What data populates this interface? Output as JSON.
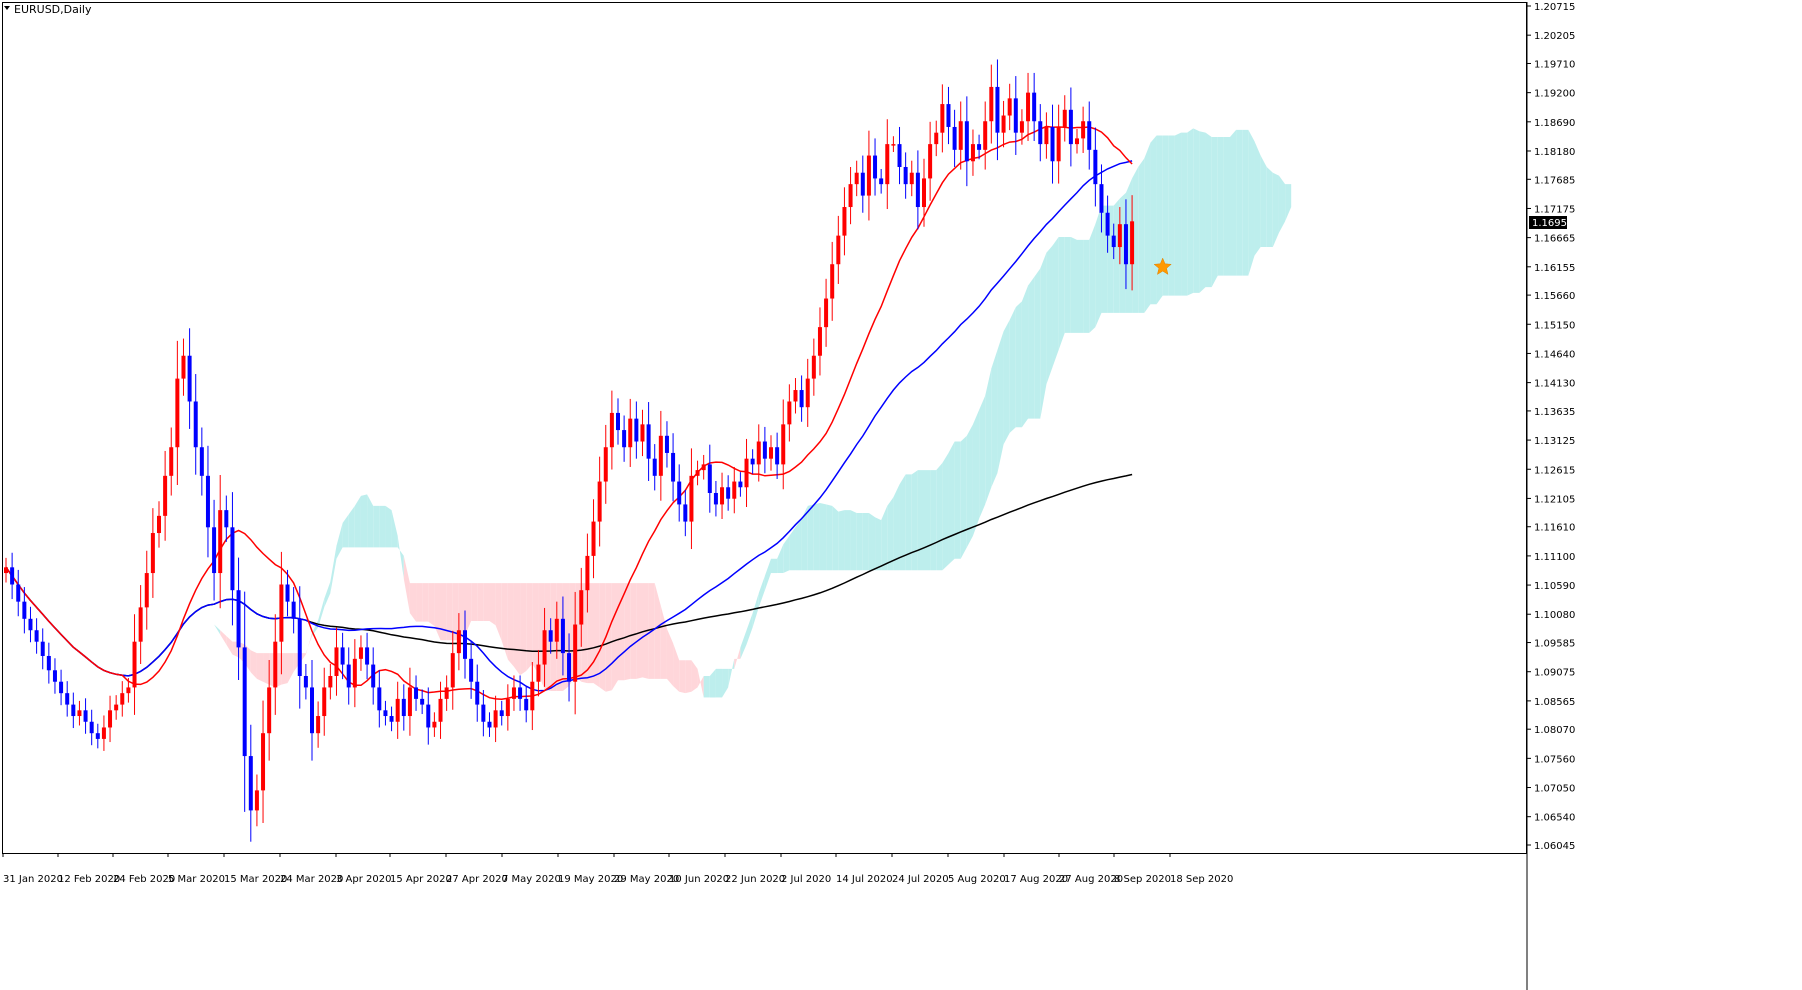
{
  "window": {
    "title": "EURUSD,Daily"
  },
  "current_price": {
    "label": "1.16950",
    "value": 1.1695
  },
  "colors": {
    "bull": "#ff0000",
    "bear": "#0000ff",
    "ma_fast": "#ff0000",
    "ma_mid": "#0000ff",
    "ma_slow": "#000000",
    "cloud_bull": "#bdeeed",
    "cloud_bear": "#ffd6da",
    "marker": "#ff9900"
  },
  "chart_data": {
    "type": "candlestick",
    "title": "EURUSD,Daily",
    "ylim": [
      1.06045,
      1.20715
    ],
    "grid": false,
    "y_ticks": [
      "1.20715",
      "1.20205",
      "1.19710",
      "1.19200",
      "1.18690",
      "1.18180",
      "1.17685",
      "1.17175",
      "1.16665",
      "1.16155",
      "1.15660",
      "1.15150",
      "1.14640",
      "1.14130",
      "1.13635",
      "1.13125",
      "1.12615",
      "1.12105",
      "1.11610",
      "1.11100",
      "1.10590",
      "1.10080",
      "1.09585",
      "1.09075",
      "1.08565",
      "1.08070",
      "1.07560",
      "1.07050",
      "1.06540",
      "1.06045"
    ],
    "x_ticks": [
      "31 Jan 2020",
      "12 Feb 2020",
      "24 Feb 2020",
      "5 Mar 2020",
      "15 Mar 2020",
      "24 Mar 2020",
      "3 Apr 2020",
      "15 Apr 2020",
      "27 Apr 2020",
      "7 May 2020",
      "19 May 2020",
      "29 May 2020",
      "10 Jun 2020",
      "22 Jun 2020",
      "2 Jul 2020",
      "14 Jul 2020",
      "24 Jul 2020",
      "5 Aug 2020",
      "17 Aug 2020",
      "27 Aug 2020",
      "8 Sep 2020",
      "18 Sep 2020"
    ],
    "candles_close": [
      1.109,
      1.106,
      1.103,
      1.1,
      1.098,
      1.096,
      1.0935,
      1.091,
      1.089,
      1.087,
      1.085,
      1.083,
      1.084,
      1.082,
      1.08,
      1.079,
      1.081,
      1.084,
      1.085,
      1.087,
      1.088,
      1.096,
      1.102,
      1.108,
      1.115,
      1.118,
      1.125,
      1.13,
      1.142,
      1.146,
      1.138,
      1.13,
      1.125,
      1.116,
      1.108,
      1.119,
      1.116,
      1.105,
      1.095,
      1.076,
      1.0665,
      1.07,
      1.08,
      1.088,
      1.096,
      1.106,
      1.103,
      1.1,
      1.09,
      1.088,
      1.08,
      1.083,
      1.088,
      1.09,
      1.095,
      1.092,
      1.088,
      1.093,
      1.095,
      1.092,
      1.088,
      1.084,
      1.083,
      1.082,
      1.086,
      1.083,
      1.088,
      1.086,
      1.085,
      1.081,
      1.082,
      1.086,
      1.088,
      1.094,
      1.098,
      1.093,
      1.089,
      1.085,
      1.082,
      1.081,
      1.084,
      1.083,
      1.086,
      1.088,
      1.086,
      1.084,
      1.089,
      1.092,
      1.098,
      1.096,
      1.1,
      1.094,
      1.089,
      1.099,
      1.105,
      1.111,
      1.117,
      1.124,
      1.13,
      1.136,
      1.133,
      1.13,
      1.135,
      1.131,
      1.134,
      1.128,
      1.125,
      1.132,
      1.129,
      1.124,
      1.12,
      1.117,
      1.125,
      1.126,
      1.127,
      1.122,
      1.12,
      1.123,
      1.121,
      1.124,
      1.123,
      1.128,
      1.127,
      1.131,
      1.128,
      1.13,
      1.127,
      1.134,
      1.138,
      1.14,
      1.137,
      1.142,
      1.146,
      1.151,
      1.156,
      1.162,
      1.167,
      1.172,
      1.176,
      1.178,
      1.174,
      1.181,
      1.177,
      1.176,
      1.183,
      1.183,
      1.179,
      1.176,
      1.178,
      1.172,
      1.177,
      1.183,
      1.185,
      1.19,
      1.186,
      1.182,
      1.187,
      1.18,
      1.183,
      1.182,
      1.187,
      1.193,
      1.185,
      1.188,
      1.191,
      1.185,
      1.187,
      1.192,
      1.187,
      1.183,
      1.186,
      1.18,
      1.186,
      1.189,
      1.183,
      1.184,
      1.187,
      1.182,
      1.176,
      1.171,
      1.167,
      1.165,
      1.169,
      1.162,
      1.1695
    ],
    "markers": [
      {
        "type": "star",
        "index": 189,
        "value": 1.1615
      }
    ]
  }
}
